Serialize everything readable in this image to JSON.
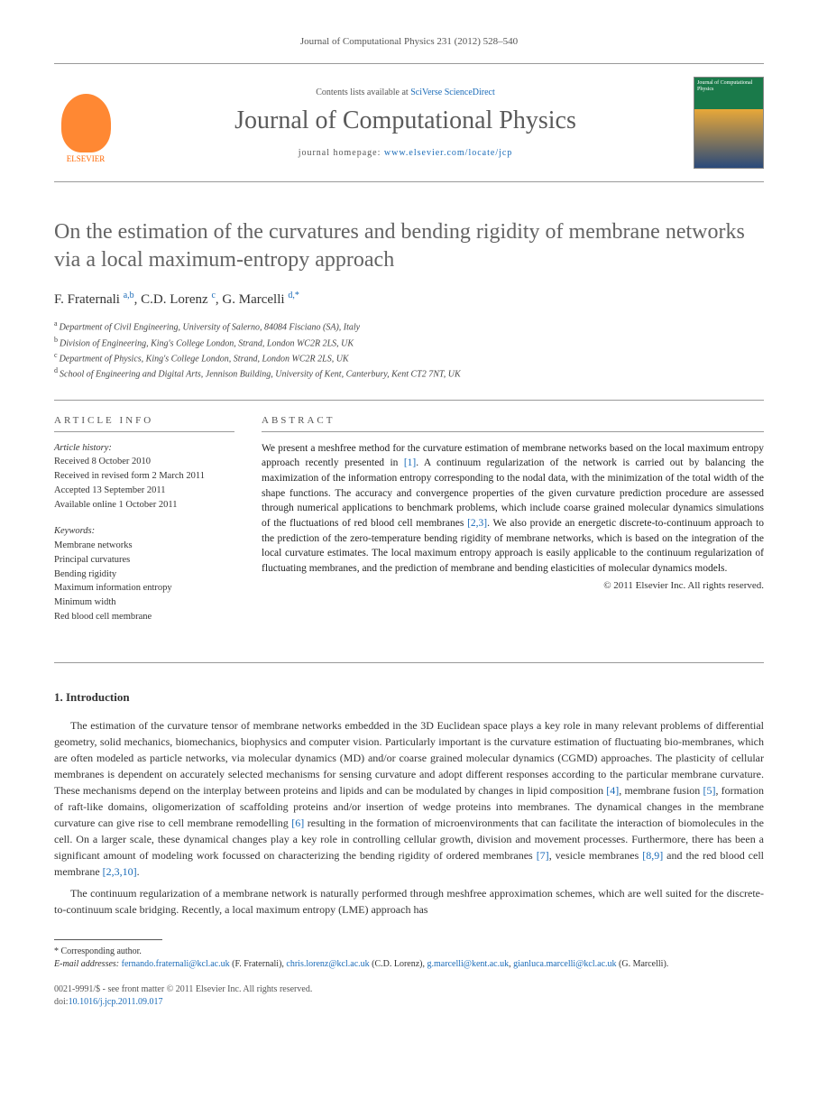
{
  "journal_ref": "Journal of Computational Physics 231 (2012) 528–540",
  "header": {
    "contents_prefix": "Contents lists available at ",
    "contents_link": "SciVerse ScienceDirect",
    "journal_name": "Journal of Computational Physics",
    "homepage_prefix": "journal homepage: ",
    "homepage_url": "www.elsevier.com/locate/jcp",
    "elsevier_label": "ELSEVIER",
    "cover_text": "Journal of Computational Physics"
  },
  "title": "On the estimation of the curvatures and bending rigidity of membrane networks via a local maximum-entropy approach",
  "authors_html": "F. Fraternali|a,b|, C.D. Lorenz|c|, G. Marcelli|d,*|",
  "authors": [
    {
      "name": "F. Fraternali",
      "sup": "a,b"
    },
    {
      "name": "C.D. Lorenz",
      "sup": "c"
    },
    {
      "name": "G. Marcelli",
      "sup": "d,",
      "corr": true
    }
  ],
  "affiliations": [
    {
      "sup": "a",
      "text": "Department of Civil Engineering, University of Salerno, 84084 Fisciano (SA), Italy"
    },
    {
      "sup": "b",
      "text": "Division of Engineering, King's College London, Strand, London WC2R 2LS, UK"
    },
    {
      "sup": "c",
      "text": "Department of Physics, King's College London, Strand, London WC2R 2LS, UK"
    },
    {
      "sup": "d",
      "text": "School of Engineering and Digital Arts, Jennison Building, University of Kent, Canterbury, Kent CT2 7NT, UK"
    }
  ],
  "info_heading": "ARTICLE INFO",
  "abstract_heading": "ABSTRACT",
  "history_label": "Article history:",
  "history": [
    "Received 8 October 2010",
    "Received in revised form 2 March 2011",
    "Accepted 13 September 2011",
    "Available online 1 October 2011"
  ],
  "keywords_label": "Keywords:",
  "keywords": [
    "Membrane networks",
    "Principal curvatures",
    "Bending rigidity",
    "Maximum information entropy",
    "Minimum width",
    "Red blood cell membrane"
  ],
  "abstract": "We present a meshfree method for the curvature estimation of membrane networks based on the local maximum entropy approach recently presented in [1]. A continuum regularization of the network is carried out by balancing the maximization of the information entropy corresponding to the nodal data, with the minimization of the total width of the shape functions. The accuracy and convergence properties of the given curvature prediction procedure are assessed through numerical applications to benchmark problems, which include coarse grained molecular dynamics simulations of the fluctuations of red blood cell membranes [2,3]. We also provide an energetic discrete-to-continuum approach to the prediction of the zero-temperature bending rigidity of membrane networks, which is based on the integration of the local curvature estimates. The local maximum entropy approach is easily applicable to the continuum regularization of fluctuating membranes, and the prediction of membrane and bending elasticities of molecular dynamics models.",
  "abstract_refs": {
    "r1": "[1]",
    "r23": "[2,3]"
  },
  "copyright": "© 2011 Elsevier Inc. All rights reserved.",
  "section1": "1. Introduction",
  "para1": "The estimation of the curvature tensor of membrane networks embedded in the 3D Euclidean space plays a key role in many relevant problems of differential geometry, solid mechanics, biomechanics, biophysics and computer vision. Particularly important is the curvature estimation of fluctuating bio-membranes, which are often modeled as particle networks, via molecular dynamics (MD) and/or coarse grained molecular dynamics (CGMD) approaches. The plasticity of cellular membranes is dependent on accurately selected mechanisms for sensing curvature and adopt different responses according to the particular membrane curvature. These mechanisms depend on the interplay between proteins and lipids and can be modulated by changes in lipid composition [4], membrane fusion [5], formation of raft-like domains, oligomerization of scaffolding proteins and/or insertion of wedge proteins into membranes. The dynamical changes in the membrane curvature can give rise to cell membrane remodelling [6] resulting in the formation of microenvironments that can facilitate the interaction of biomolecules in the cell. On a larger scale, these dynamical changes play a key role in controlling cellular growth, division and movement processes. Furthermore, there has been a significant amount of modeling work focussed on characterizing the bending rigidity of ordered membranes [7], vesicle membranes [8,9] and the red blood cell membrane [2,3,10].",
  "para2": "The continuum regularization of a membrane network is naturally performed through meshfree approximation schemes, which are well suited for the discrete-to-continuum scale bridging. Recently, a local maximum entropy (LME) approach has",
  "corr_label": "* Corresponding author.",
  "email_label": "E-mail addresses:",
  "emails": [
    {
      "addr": "fernando.fraternali@kcl.ac.uk",
      "who": "(F. Fraternali)"
    },
    {
      "addr": "chris.lorenz@kcl.ac.uk",
      "who": "(C.D. Lorenz)"
    },
    {
      "addr": "g.marcelli@kent.ac.uk",
      "who": ""
    },
    {
      "addr": "gianluca.marcelli@kcl.ac.uk",
      "who": "(G. Marcelli)."
    }
  ],
  "footer": {
    "issn": "0021-9991/$ - see front matter © 2011 Elsevier Inc. All rights reserved.",
    "doi_label": "doi:",
    "doi": "10.1016/j.jcp.2011.09.017"
  },
  "colors": {
    "link": "#1a6bb8",
    "heading_gray": "#636363",
    "rule": "#999999",
    "elsevier_orange": "#ff6600"
  }
}
